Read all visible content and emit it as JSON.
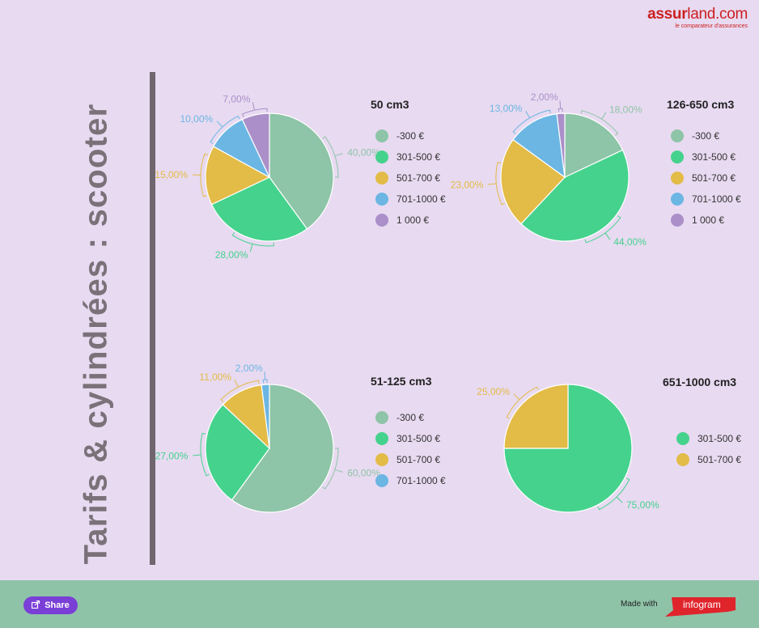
{
  "logo": {
    "wordmark_bold": "assur",
    "wordmark_rest": "land.com",
    "tagline": "le comparateur d'assurances"
  },
  "page_title": "Tarifs & cylindrées : scooter",
  "footer": {
    "share_label": "Share",
    "made_with": "Made with",
    "brand": "infogram",
    "share_icon": "share-icon"
  },
  "colors": {
    "-300 €": "#8ec4a7",
    "301-500 €": "#45d28d",
    "501-700 €": "#e3bb47",
    "701-1000 €": "#6bb6e3",
    "1 000 €": "#aa8fc8"
  },
  "chart_data": [
    {
      "type": "pie",
      "title": "50 cm3",
      "categories": [
        "-300 €",
        "301-500 €",
        "501-700 €",
        "701-1000 €",
        "1 000 €"
      ],
      "values": [
        40,
        28,
        15,
        10,
        7
      ],
      "labels": [
        "40,00%",
        "28,00%",
        "15,00%",
        "10,00%",
        "7,00%"
      ],
      "legend": "right"
    },
    {
      "type": "pie",
      "title": "126-650 cm3",
      "categories": [
        "-300 €",
        "301-500 €",
        "501-700 €",
        "701-1000 €",
        "1 000 €"
      ],
      "values": [
        18,
        44,
        23,
        13,
        2
      ],
      "labels": [
        "18,00%",
        "44,00%",
        "23,00%",
        "13,00%",
        "2,00%"
      ],
      "legend": "right"
    },
    {
      "type": "pie",
      "title": "51-125 cm3",
      "categories": [
        "-300 €",
        "301-500 €",
        "501-700 €",
        "701-1000 €"
      ],
      "values": [
        60,
        27,
        11,
        2
      ],
      "labels": [
        "60,00%",
        "27,00%",
        "11,00%",
        "2,00%"
      ],
      "legend": "right"
    },
    {
      "type": "pie",
      "title": "651-1000 cm3",
      "categories": [
        "301-500 €",
        "501-700 €"
      ],
      "values": [
        75,
        25
      ],
      "labels": [
        "75,00%",
        "25,00%"
      ],
      "legend": "right"
    }
  ]
}
